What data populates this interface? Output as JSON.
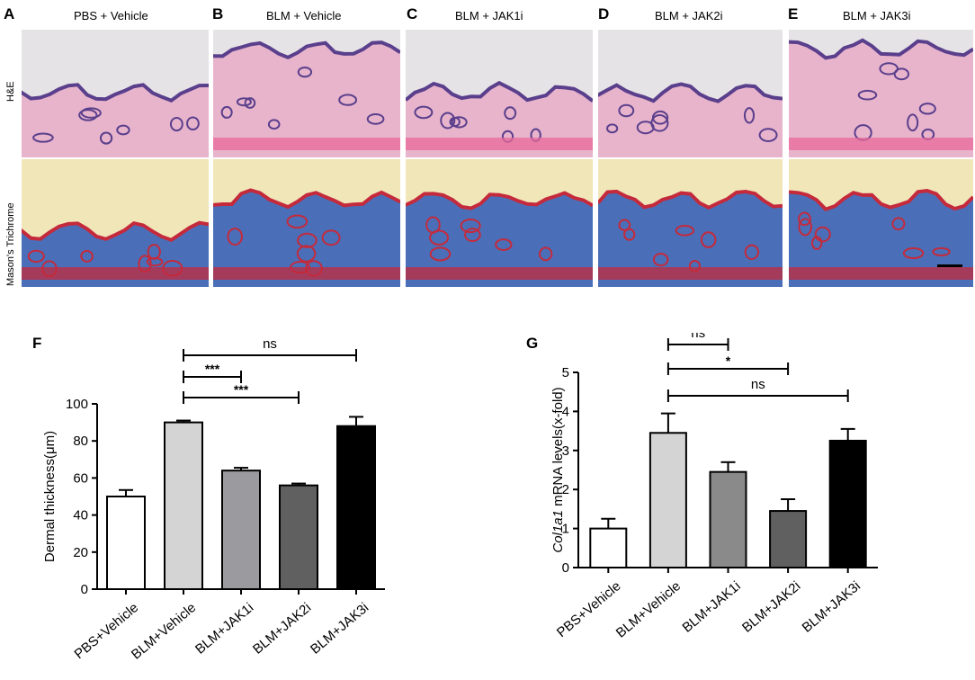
{
  "figure": {
    "panels": [
      {
        "letter": "A",
        "title": "PBS + Vehicle"
      },
      {
        "letter": "B",
        "title": "BLM + Vehicle"
      },
      {
        "letter": "C",
        "title": "BLM + JAK1i"
      },
      {
        "letter": "D",
        "title": "BLM + JAK2i"
      },
      {
        "letter": "E",
        "title": "BLM + JAK3i"
      }
    ],
    "rows": [
      {
        "label": "H&E"
      },
      {
        "label": "Mason's Trichrome"
      }
    ],
    "colors": {
      "he_background": "#e6e3e6",
      "he_tissue": "#e8b4cc",
      "he_epidermis": "#5a3f8c",
      "trichrome_background": "#f0e6b8",
      "trichrome_tissue": "#4a6fb8",
      "trichrome_muscle": "#c42a3c"
    }
  },
  "chart_data": [
    {
      "panel": "F",
      "type": "bar",
      "ylabel": "Dermal thickness(μm)",
      "ylim": [
        0,
        100
      ],
      "yticks": [
        "0",
        "20",
        "40",
        "60",
        "80",
        "100"
      ],
      "categories": [
        "PBS+Vehicle",
        "BLM+Vehicle",
        "BLM+JAK1i",
        "BLM+JAK2i",
        "BLM+JAK3i"
      ],
      "values": [
        50,
        90,
        64,
        56,
        88
      ],
      "errors": [
        3.5,
        1,
        1.5,
        1,
        5
      ],
      "colors": [
        "#ffffff",
        "#d4d4d4",
        "#9b9b9f",
        "#606060",
        "#000000"
      ],
      "significance": [
        {
          "from": 1,
          "to": 4,
          "label": "ns"
        },
        {
          "from": 1,
          "to": 2,
          "label": "***"
        },
        {
          "from": 1,
          "to": 3,
          "label": "***"
        }
      ]
    },
    {
      "panel": "G",
      "type": "bar",
      "ylabel_italic": "Col1a1",
      "ylabel_rest": " mRNA levels(x-fold)",
      "ylim": [
        0,
        5
      ],
      "yticks": [
        "0",
        "1",
        "2",
        "3",
        "4",
        "5"
      ],
      "categories": [
        "PBS+Vehicle",
        "BLM+Vehicle",
        "BLM+JAK1i",
        "BLM+JAK2i",
        "BLM+JAK3i"
      ],
      "values": [
        1.0,
        3.45,
        2.45,
        1.45,
        3.25
      ],
      "errors": [
        0.25,
        0.5,
        0.25,
        0.3,
        0.3
      ],
      "colors": [
        "#ffffff",
        "#d4d4d4",
        "#8a8a8a",
        "#606060",
        "#000000"
      ],
      "significance": [
        {
          "from": 1,
          "to": 2,
          "label": "ns"
        },
        {
          "from": 1,
          "to": 3,
          "label": "*"
        },
        {
          "from": 1,
          "to": 4,
          "label": "ns"
        }
      ]
    }
  ]
}
